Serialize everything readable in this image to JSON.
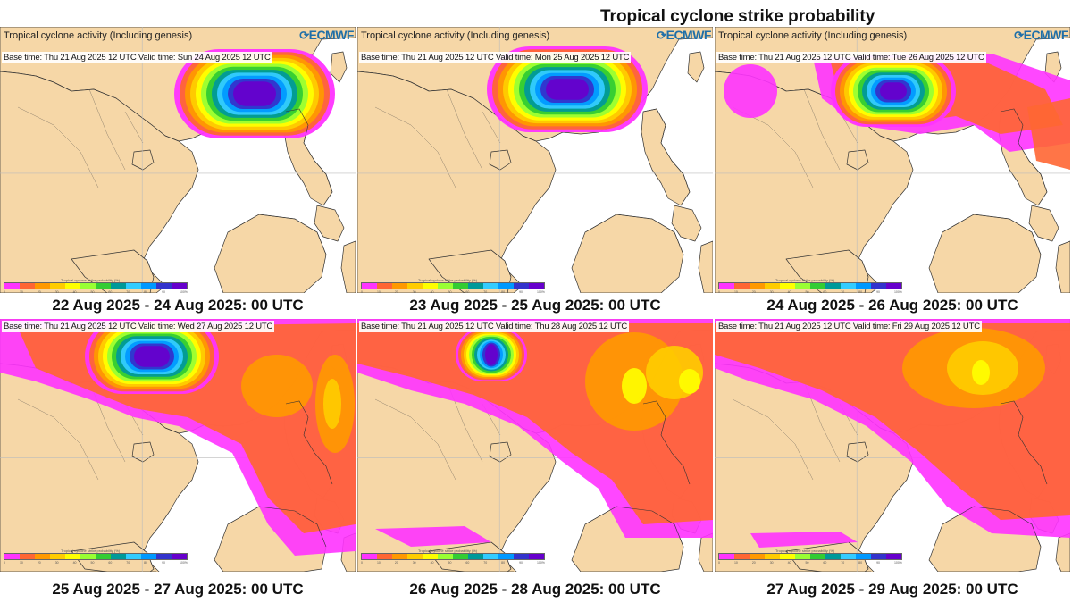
{
  "title": "Tropical cyclone strike probability",
  "panel_header": "Tropical cyclone activity (Including genesis)",
  "logo": "ECMWF",
  "colorbar_title": "Tropical cyclone strike probability (%)",
  "colorbar_ticks": [
    "0",
    "10",
    "20",
    "30",
    "40",
    "50",
    "60",
    "70",
    "80",
    "90",
    "100%"
  ],
  "colors": {
    "land": "#f6d7a7",
    "sea": "#ffffff",
    "bands": [
      "#ff33ff",
      "#ff6633",
      "#ff9900",
      "#ffcc00",
      "#ffff00",
      "#99ff33",
      "#33cc33",
      "#009999",
      "#33ccff",
      "#0099ff",
      "#3333cc",
      "#6600cc"
    ]
  },
  "panels": [
    {
      "id": "p1",
      "base": "Base time: Thu 21 Aug 2025 12 UTC Valid time: Sun 24 Aug 2025 12 UTC",
      "date": "22 Aug 2025 - 24 Aug 2025: 00 UTC",
      "genesis_label": true
    },
    {
      "id": "p2",
      "base": "Base time: Thu 21 Aug 2025 12 UTC Valid time: Mon 25 Aug 2025 12 UTC",
      "date": "23 Aug 2025 - 25 Aug 2025: 00 UTC",
      "genesis_label": true
    },
    {
      "id": "p3",
      "base": "Base time: Thu 21 Aug 2025 12 UTC Valid time: Tue 26 Aug 2025 12 UTC",
      "date": "24 Aug 2025 - 26 Aug 2025: 00 UTC",
      "genesis_label": true
    },
    {
      "id": "p4",
      "base": "Base time: Thu 21 Aug 2025 12 UTC Valid time: Wed 27 Aug 2025 12 UTC",
      "date": "25 Aug 2025 - 27 Aug 2025: 00 UTC",
      "genesis_label": false
    },
    {
      "id": "p5",
      "base": "Base time: Thu 21 Aug 2025 12 UTC Valid time: Thu 28 Aug 2025 12 UTC",
      "date": "26 Aug 2025 - 28 Aug 2025: 00 UTC",
      "genesis_label": false
    },
    {
      "id": "p6",
      "base": "Base time: Thu 21 Aug 2025 12 UTC Valid time: Fri 29 Aug 2025 12 UTC",
      "date": "27 Aug 2025 - 29 Aug 2025: 00 UTC",
      "genesis_label": false
    }
  ]
}
